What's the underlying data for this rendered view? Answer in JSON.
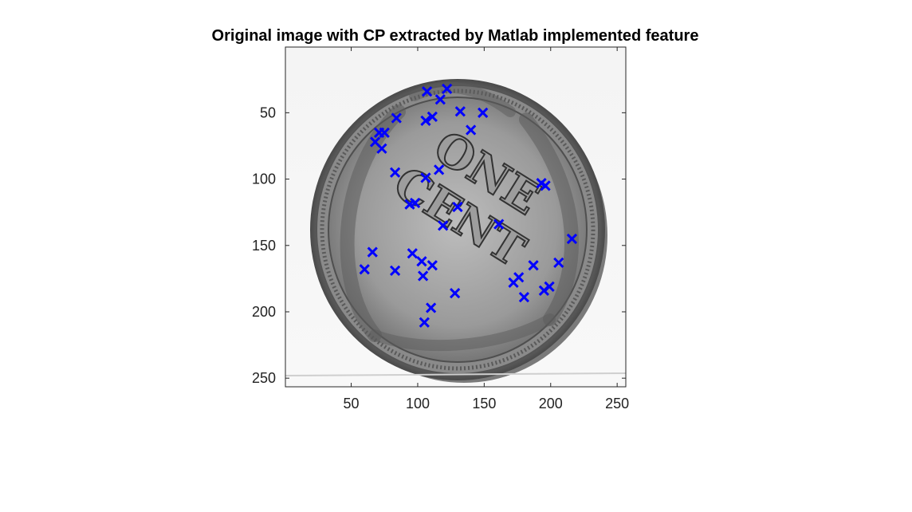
{
  "chart_data": {
    "type": "scatter",
    "title": "Original image with CP extracted by Matlab implemented feature",
    "background_image": "grayscale photo of a one cent coin",
    "coin_text": [
      "ONE",
      "CENT"
    ],
    "xlim": [
      0.5,
      256.5
    ],
    "ylim": [
      0.5,
      256.5
    ],
    "y_reversed": true,
    "x_ticks": [
      50,
      100,
      150,
      200,
      250
    ],
    "y_ticks": [
      50,
      100,
      150,
      200,
      250
    ],
    "x_tick_labels": [
      "50",
      "100",
      "150",
      "200",
      "250"
    ],
    "y_tick_labels": [
      "50",
      "100",
      "150",
      "200",
      "250"
    ],
    "marker": "x",
    "marker_color": "#0000ff",
    "series": [
      {
        "x": [
          107,
          122,
          117,
          132,
          149,
          140,
          111,
          106,
          84,
          75,
          71,
          68,
          73,
          83,
          106,
          116,
          98,
          94,
          130,
          119,
          193,
          196,
          161,
          216,
          66,
          60,
          96,
          83,
          103,
          111,
          104,
          187,
          206,
          176,
          172,
          180,
          195,
          199,
          128,
          110,
          105
        ],
        "y": [
          34,
          32,
          40,
          49,
          50,
          63,
          53,
          56,
          54,
          65,
          65,
          72,
          77,
          95,
          99,
          93,
          118,
          119,
          121,
          135,
          103,
          105,
          134,
          145,
          155,
          168,
          156,
          169,
          162,
          165,
          173,
          165,
          163,
          174,
          178,
          189,
          184,
          181,
          186,
          197,
          208
        ]
      }
    ]
  }
}
